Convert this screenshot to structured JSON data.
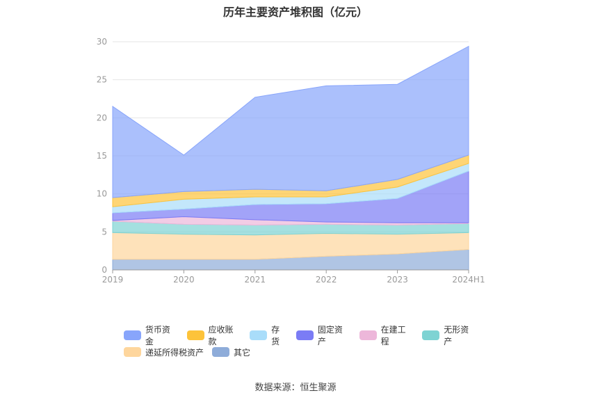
{
  "chart_data": {
    "type": "area",
    "stacked": true,
    "title": "历年主要资产堆积图（亿元）",
    "categories": [
      "2019",
      "2020",
      "2021",
      "2022",
      "2023",
      "2024H1"
    ],
    "yticks": [
      "0",
      "5",
      "10",
      "15",
      "20",
      "25",
      "30"
    ],
    "ylim": [
      0,
      30
    ],
    "grid": true,
    "legend_position": "bottom",
    "series": [
      {
        "name": "其它",
        "color": "#8eacd9",
        "values": [
          1.4,
          1.4,
          1.4,
          1.8,
          2.1,
          2.7
        ]
      },
      {
        "name": "递延所得税资产",
        "color": "#fed69d",
        "values": [
          3.5,
          3.3,
          3.2,
          3.0,
          2.6,
          2.2
        ]
      },
      {
        "name": "无形资产",
        "color": "#7ed3d3",
        "values": [
          1.5,
          1.3,
          1.3,
          1.2,
          1.2,
          1.2
        ]
      },
      {
        "name": "在建工程",
        "color": "#edb7da",
        "values": [
          0.1,
          1.0,
          0.7,
          0.3,
          0.3,
          0.1
        ]
      },
      {
        "name": "固定资产",
        "color": "#7b7cf5",
        "values": [
          1.0,
          1.0,
          2.0,
          2.4,
          3.2,
          6.8
        ]
      },
      {
        "name": "存货",
        "color": "#a9ddfa",
        "values": [
          0.8,
          1.3,
          1.0,
          0.9,
          1.5,
          1.0
        ]
      },
      {
        "name": "应收账款",
        "color": "#fdc33a",
        "values": [
          1.2,
          1.0,
          1.0,
          0.8,
          1.0,
          1.1
        ]
      },
      {
        "name": "货币资金",
        "color": "#88a5fb",
        "values": [
          12.0,
          4.8,
          12.1,
          13.8,
          12.5,
          14.3
        ]
      }
    ]
  },
  "legend": {
    "row1": [
      {
        "label": "货币资金",
        "color": "#88a5fb"
      },
      {
        "label": "应收账款",
        "color": "#fdc33a"
      },
      {
        "label": "存货",
        "color": "#a9ddfa"
      },
      {
        "label": "固定资产",
        "color": "#7b7cf5"
      },
      {
        "label": "在建工程",
        "color": "#edb7da"
      },
      {
        "label": "无形资产",
        "color": "#7ed3d3"
      }
    ],
    "row2": [
      {
        "label": "递延所得税资产",
        "color": "#fed69d"
      },
      {
        "label": "其它",
        "color": "#8eacd9"
      }
    ]
  },
  "source_text": "数据来源：恒生聚源"
}
